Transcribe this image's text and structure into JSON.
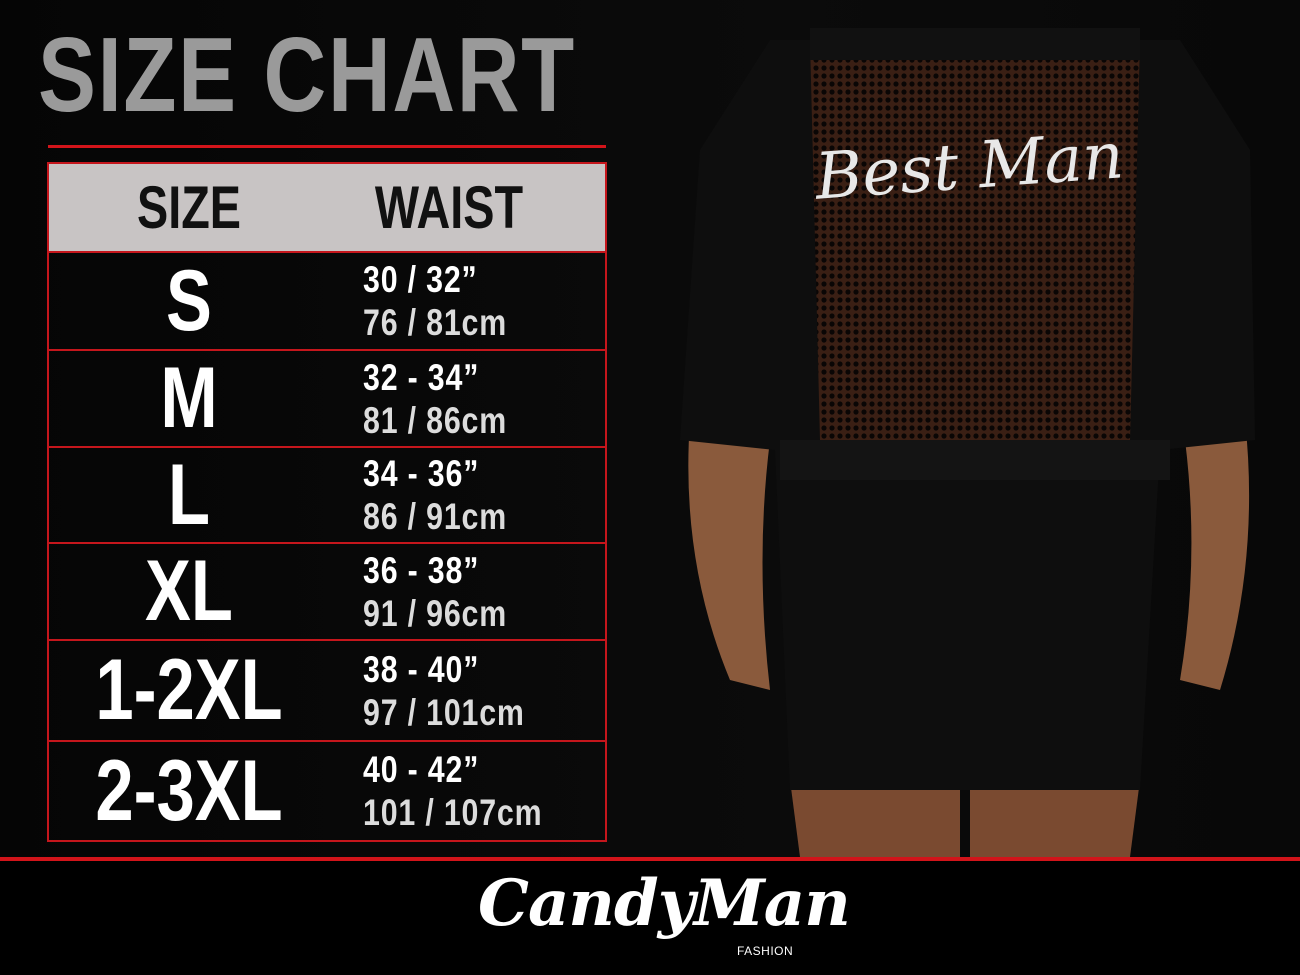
{
  "title": "SIZE CHART",
  "table": {
    "headers": [
      "SIZE",
      "WAIST"
    ],
    "rows": [
      {
        "size": "S",
        "inches": "30 / 32”",
        "cm": "76 / 81cm"
      },
      {
        "size": "M",
        "inches": "32 - 34”",
        "cm": "81 / 86cm"
      },
      {
        "size": "L",
        "inches": "34 - 36”",
        "cm": "86 / 91cm"
      },
      {
        "size": "XL",
        "inches": "36 - 38”",
        "cm": "91 / 96cm"
      },
      {
        "size": "1-2XL",
        "inches": "38 - 40”",
        "cm": "97 / 101cm"
      },
      {
        "size": "2-3XL",
        "inches": "40 - 42”",
        "cm": "101 / 107cm"
      }
    ]
  },
  "product": {
    "print_text": "Best Man"
  },
  "brand": {
    "name": "CandyMan",
    "sub": "FASHION"
  },
  "colors": {
    "accent": "#d2141a",
    "header_bg": "#c8c4c4",
    "title": "#9a9a9a",
    "background": "#000000"
  }
}
